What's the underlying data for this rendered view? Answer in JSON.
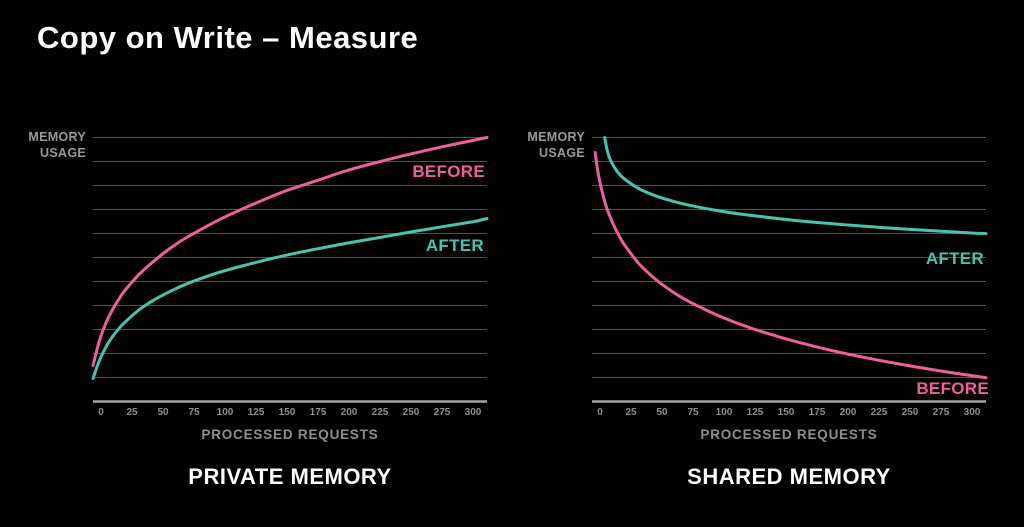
{
  "page": {
    "title": "Copy on Write – Measure",
    "background": "#000000"
  },
  "colors": {
    "background": "#000000",
    "title_text": "#ffffff",
    "gridline": "#515151",
    "axis_line": "#a6a6a6",
    "axis_text": "#8e8e8e",
    "ylabel_text": "#9a9a9a",
    "before_pink": "#ed5f9d",
    "after_teal": "#46c4b1"
  },
  "chart_data": [
    {
      "type": "line",
      "title": "PRIVATE MEMORY",
      "xlabel": "PROCESSED REQUESTS",
      "ylabel": "MEMORY USAGE",
      "x_tick_labels": [
        "0",
        "25",
        "50",
        "75",
        "100",
        "125",
        "150",
        "175",
        "200",
        "225",
        "250",
        "275",
        "300"
      ],
      "x_range": [
        0,
        310
      ],
      "y_range": [
        0,
        100
      ],
      "y_note": "y axis unlabeled; values are relative memory usage, 0-100 normalized",
      "grid": true,
      "gridline_count": 11,
      "legend": "inline curve labels at right",
      "series": [
        {
          "name": "BEFORE",
          "color": "#ed5f9d",
          "shape": "logarithmic growth",
          "points": [
            [
              0,
              13.6
            ],
            [
              5,
              23
            ],
            [
              10,
              29.5
            ],
            [
              15,
              34.5
            ],
            [
              20,
              38.5
            ],
            [
              25,
              42
            ],
            [
              37,
              48.5
            ],
            [
              50,
              54
            ],
            [
              62,
              58.5
            ],
            [
              75,
              62.5
            ],
            [
              100,
              69
            ],
            [
              125,
              74.5
            ],
            [
              150,
              79.5
            ],
            [
              175,
              83.5
            ],
            [
              200,
              87.5
            ],
            [
              225,
              90.8
            ],
            [
              250,
              93.8
            ],
            [
              275,
              96.5
            ],
            [
              300,
              99
            ],
            [
              310,
              100
            ]
          ]
        },
        {
          "name": "AFTER",
          "color": "#46c4b1",
          "shape": "logarithmic growth",
          "points": [
            [
              0,
              8.7
            ],
            [
              5,
              15.5
            ],
            [
              10,
              20.5
            ],
            [
              15,
              24.3
            ],
            [
              20,
              27.4
            ],
            [
              25,
              30
            ],
            [
              37,
              35
            ],
            [
              50,
              39
            ],
            [
              62,
              42
            ],
            [
              75,
              44.8
            ],
            [
              100,
              49
            ],
            [
              125,
              52.3
            ],
            [
              150,
              55.2
            ],
            [
              175,
              57.7
            ],
            [
              200,
              60
            ],
            [
              225,
              62.1
            ],
            [
              250,
              64.2
            ],
            [
              275,
              66.2
            ],
            [
              300,
              68.2
            ],
            [
              310,
              69.3
            ]
          ]
        }
      ]
    },
    {
      "type": "line",
      "title": "SHARED MEMORY",
      "xlabel": "PROCESSED REQUESTS",
      "ylabel": "MEMORY USAGE",
      "x_tick_labels": [
        "0",
        "25",
        "50",
        "75",
        "100",
        "125",
        "150",
        "175",
        "200",
        "225",
        "250",
        "275",
        "300"
      ],
      "x_range": [
        0,
        310
      ],
      "y_range": [
        0,
        100
      ],
      "y_note": "y axis unlabeled; values are relative memory usage, 0-100 normalized",
      "grid": true,
      "gridline_count": 11,
      "legend": "inline curve labels at right",
      "series": [
        {
          "name": "BEFORE",
          "color": "#ed5f9d",
          "shape": "steep logarithmic decay",
          "points": [
            [
              2.5,
              94.3
            ],
            [
              5,
              86
            ],
            [
              10,
              75.8
            ],
            [
              15,
              69
            ],
            [
              20,
              63.9
            ],
            [
              25,
              59.7
            ],
            [
              37,
              52.2
            ],
            [
              50,
              46.3
            ],
            [
              62,
              42
            ],
            [
              75,
              38.2
            ],
            [
              100,
              32.4
            ],
            [
              125,
              27.8
            ],
            [
              150,
              24.1
            ],
            [
              175,
              20.9
            ],
            [
              200,
              18.1
            ],
            [
              225,
              15.7
            ],
            [
              250,
              13.5
            ],
            [
              275,
              11.5
            ],
            [
              300,
              9.7
            ],
            [
              310,
              9
            ]
          ]
        },
        {
          "name": "AFTER",
          "color": "#46c4b1",
          "shape": "shallow logarithmic decay",
          "points": [
            [
              10,
              100
            ],
            [
              12,
              95
            ],
            [
              15,
              90.9
            ],
            [
              20,
              87
            ],
            [
              25,
              84.5
            ],
            [
              37,
              80.6
            ],
            [
              50,
              77.9
            ],
            [
              62,
              76.1
            ],
            [
              75,
              74.5
            ],
            [
              100,
              72.2
            ],
            [
              125,
              70.5
            ],
            [
              150,
              69.1
            ],
            [
              175,
              67.9
            ],
            [
              200,
              66.9
            ],
            [
              225,
              66
            ],
            [
              250,
              65.2
            ],
            [
              275,
              64.5
            ],
            [
              300,
              63.8
            ],
            [
              310,
              63.6
            ]
          ]
        }
      ]
    }
  ]
}
